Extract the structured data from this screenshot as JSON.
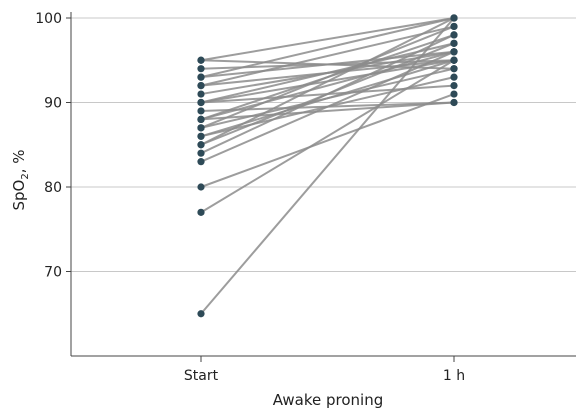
{
  "chart_data": {
    "type": "line",
    "title": "",
    "xlabel": "Awake proning",
    "ylabel": "SpO2, %",
    "ylabel_main": "SpO",
    "ylabel_sub": "2",
    "ylabel_tail": ", %",
    "categories": [
      "Start",
      "1 h"
    ],
    "ylim": [
      60,
      100
    ],
    "yticks": [
      70,
      80,
      90,
      100
    ],
    "grid": true,
    "legend": "none",
    "colors": {
      "line": "#8c8c8c",
      "marker": "#2e4a57",
      "grid": "#c8c8c8",
      "axis": "#444444"
    },
    "series": [
      {
        "values": [
          65,
          100
        ]
      },
      {
        "values": [
          77,
          95
        ]
      },
      {
        "values": [
          80,
          91
        ]
      },
      {
        "values": [
          83,
          96
        ]
      },
      {
        "values": [
          84,
          98
        ]
      },
      {
        "values": [
          85,
          97
        ]
      },
      {
        "values": [
          85,
          100
        ]
      },
      {
        "values": [
          86,
          95
        ]
      },
      {
        "values": [
          86,
          93
        ]
      },
      {
        "values": [
          87,
          99
        ]
      },
      {
        "values": [
          87,
          94
        ]
      },
      {
        "values": [
          88,
          96
        ]
      },
      {
        "values": [
          88,
          90
        ]
      },
      {
        "values": [
          88,
          98
        ]
      },
      {
        "values": [
          89,
          90
        ]
      },
      {
        "values": [
          90,
          92
        ]
      },
      {
        "values": [
          90,
          97
        ]
      },
      {
        "values": [
          90,
          95
        ]
      },
      {
        "values": [
          91,
          96
        ]
      },
      {
        "values": [
          92,
          99
        ]
      },
      {
        "values": [
          92,
          95
        ]
      },
      {
        "values": [
          93,
          100
        ]
      },
      {
        "values": [
          93,
          96
        ]
      },
      {
        "values": [
          94,
          95
        ]
      },
      {
        "values": [
          95,
          94
        ]
      },
      {
        "values": [
          95,
          100
        ]
      }
    ]
  }
}
